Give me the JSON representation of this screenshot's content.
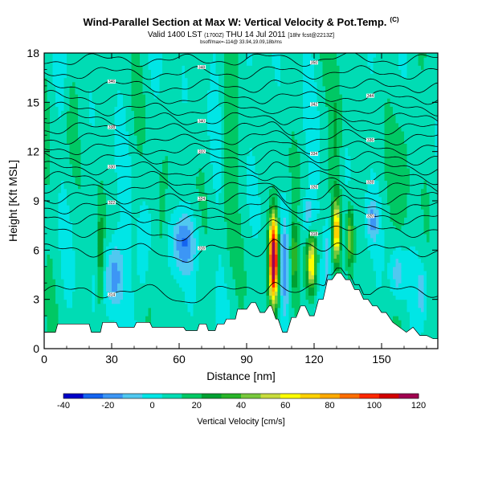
{
  "title": {
    "main": "Wind-Parallel Section at Max W: Vertical Velocity & Pot.Temp.",
    "tag": "(C)",
    "valid": "Valid 1400 LST",
    "valid_utc": "(1700Z)",
    "valid_date": "THU 14 Jul 2011",
    "forecast": "[18hr fcst@2213Z]",
    "line3": "bsoff/max=-114@ 33.94,19.09,18b/ms"
  },
  "colors": {
    "palette": [
      "#0000c8",
      "#1464f0",
      "#3c96f5",
      "#50c8f0",
      "#00e6e6",
      "#00dcb4",
      "#00c864",
      "#00a032",
      "#28b428",
      "#78c83c",
      "#c8dc3c",
      "#ffff00",
      "#ffd200",
      "#ffaa00",
      "#ff6e00",
      "#ff2800",
      "#d20000",
      "#a00050"
    ],
    "contour": "#000000",
    "terrain": "#ffffff"
  },
  "chart_data": {
    "type": "heatmap",
    "xlabel": "Distance [nm]",
    "ylabel": "Height [Kft MSL]",
    "xlim": [
      0,
      175
    ],
    "ylim": [
      0,
      18
    ],
    "xticks": [
      0,
      30,
      60,
      90,
      120,
      150
    ],
    "yticks": [
      0,
      3,
      6,
      9,
      12,
      15,
      18
    ],
    "colorbar": {
      "label": "Vertical Velocity [cm/s]",
      "min": -40,
      "max": 120,
      "ticks": [
        -40,
        -20,
        0,
        20,
        40,
        60,
        80,
        100,
        120
      ]
    },
    "terrain_x": [
      0,
      5,
      6,
      20,
      21,
      25,
      26,
      32,
      33,
      40,
      41,
      47,
      48,
      55,
      56,
      62,
      63,
      68,
      69,
      72,
      73,
      76,
      77,
      80,
      81,
      85,
      86,
      90,
      92,
      94,
      96,
      98,
      100,
      101,
      103,
      104,
      106,
      108,
      110,
      112,
      114,
      116,
      118,
      120,
      122,
      124,
      126,
      128,
      130,
      132,
      134,
      136,
      138,
      140,
      142,
      144,
      146,
      148,
      150,
      152,
      155,
      158,
      161,
      164,
      167,
      170,
      173,
      175
    ],
    "terrain_y": [
      1.0,
      1.0,
      1.5,
      1.5,
      1.0,
      1.0,
      1.6,
      1.6,
      1.3,
      1.3,
      1.6,
      1.6,
      1.3,
      1.3,
      1.3,
      1.3,
      1.1,
      1.1,
      1.5,
      1.5,
      1.1,
      1.1,
      1.5,
      1.5,
      1.8,
      1.8,
      2.4,
      2.4,
      2.8,
      2.8,
      2.2,
      2.2,
      2.6,
      2.6,
      1.8,
      1.8,
      1.0,
      1.0,
      1.9,
      1.9,
      2.6,
      2.6,
      2.0,
      2.0,
      3.0,
      3.0,
      4.2,
      4.2,
      4.6,
      4.6,
      4.2,
      4.2,
      3.6,
      3.6,
      3.0,
      3.0,
      2.6,
      2.6,
      2.2,
      2.2,
      1.6,
      1.3,
      1.0,
      1.3,
      0.8,
      0.8,
      0.6,
      0.6
    ],
    "w_features": [
      {
        "x": 102,
        "y": 5.5,
        "wx": 2.0,
        "wy": 2.6,
        "amp": 125
      },
      {
        "x": 119,
        "y": 5.2,
        "wx": 2.2,
        "wy": 1.8,
        "amp": 65
      },
      {
        "x": 130,
        "y": 7.2,
        "wx": 1.6,
        "wy": 1.8,
        "amp": 65
      },
      {
        "x": 136,
        "y": 6.8,
        "wx": 1.6,
        "wy": 1.8,
        "amp": 40
      },
      {
        "x": 111,
        "y": 5.5,
        "wx": 1.8,
        "wy": 2.2,
        "amp": 30
      },
      {
        "x": 31,
        "y": 4.5,
        "wx": 4.0,
        "wy": 2.2,
        "amp": -30
      },
      {
        "x": 62,
        "y": 6.5,
        "wx": 5.5,
        "wy": 1.8,
        "amp": -28
      },
      {
        "x": 107,
        "y": 5.0,
        "wx": 2.0,
        "wy": 3.0,
        "amp": -25
      },
      {
        "x": 126,
        "y": 5.6,
        "wx": 1.8,
        "wy": 2.5,
        "amp": -22
      },
      {
        "x": 157,
        "y": 4.6,
        "wx": 3.5,
        "wy": 1.8,
        "amp": -22
      },
      {
        "x": 168,
        "y": 3.5,
        "wx": 2.0,
        "wy": 1.5,
        "amp": -18
      },
      {
        "x": 44,
        "y": 6.0,
        "wx": 3.0,
        "wy": 3.0,
        "amp": -18
      },
      {
        "x": 117,
        "y": 8.2,
        "wx": 3.0,
        "wy": 1.2,
        "amp": -20
      },
      {
        "x": 146,
        "y": 7.8,
        "wx": 2.5,
        "wy": 1.2,
        "amp": -20
      },
      {
        "x": 25,
        "y": 5.5,
        "wx": 1.5,
        "wy": 3.5,
        "amp": 22
      },
      {
        "x": 52,
        "y": 8.0,
        "wx": 3.0,
        "wy": 4.0,
        "amp": 14
      },
      {
        "x": 82,
        "y": 11.0,
        "wx": 3.0,
        "wy": 5.0,
        "amp": 14
      },
      {
        "x": 130,
        "y": 13.0,
        "wx": 2.5,
        "wy": 4.0,
        "amp": 16
      },
      {
        "x": 160,
        "y": 11.0,
        "wx": 4.0,
        "wy": 6.0,
        "amp": 12
      },
      {
        "x": 12,
        "y": 14.0,
        "wx": 3.0,
        "wy": 3.0,
        "amp": 10
      }
    ],
    "isentropes": [
      {
        "base": 3.5,
        "label": "314"
      },
      {
        "base": 6.0,
        "label": "316"
      },
      {
        "base": 7.2,
        "label": "318"
      },
      {
        "base": 8.0,
        "label": "320"
      },
      {
        "base": 8.6,
        "label": "322"
      },
      {
        "base": 9.2,
        "label": "324"
      },
      {
        "base": 9.8,
        "label": "326"
      },
      {
        "base": 10.4,
        "label": "328"
      },
      {
        "base": 11.0,
        "label": "330"
      },
      {
        "base": 11.6,
        "label": "332"
      },
      {
        "base": 12.2,
        "label": "334"
      },
      {
        "base": 12.8,
        "label": "336"
      },
      {
        "base": 13.4,
        "label": "338"
      },
      {
        "base": 14.0,
        "label": "340"
      },
      {
        "base": 14.6,
        "label": "342"
      },
      {
        "base": 15.3,
        "label": "344"
      },
      {
        "base": 16.0,
        "label": "346"
      },
      {
        "base": 16.8,
        "label": "348"
      },
      {
        "base": 17.6,
        "label": "350"
      }
    ]
  }
}
